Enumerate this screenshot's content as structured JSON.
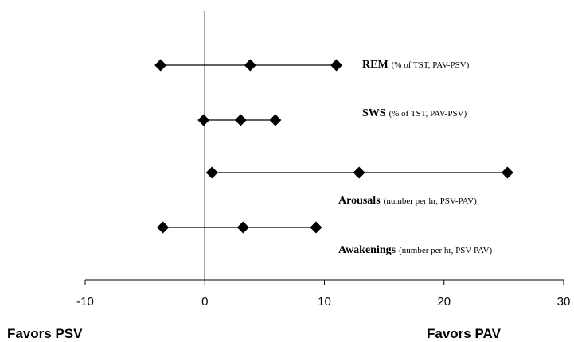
{
  "chart_data": {
    "type": "forest",
    "xlim": [
      -10,
      30
    ],
    "x_ticks": [
      "-10",
      "0",
      "10",
      "20",
      "30"
    ],
    "grid": false,
    "reference_line_x": 0,
    "favors_left": "Favors PSV",
    "favors_right": "Favors PAV",
    "rows": [
      {
        "name": "REM",
        "units": "(% of TST, PAV-PSV)",
        "low": -3.7,
        "estimate": 3.8,
        "high": 11.0
      },
      {
        "name": "SWS",
        "units": "(% of TST, PAV-PSV)",
        "low": -0.1,
        "estimate": 3.0,
        "high": 5.9
      },
      {
        "name": "Arousals",
        "units": "(number per hr, PSV-PAV)",
        "low": 0.6,
        "estimate": 12.9,
        "high": 25.3
      },
      {
        "name": "Awakenings",
        "units": "(number per hr, PSV-PAV)",
        "low": -3.5,
        "estimate": 3.2,
        "high": 9.3
      }
    ]
  }
}
